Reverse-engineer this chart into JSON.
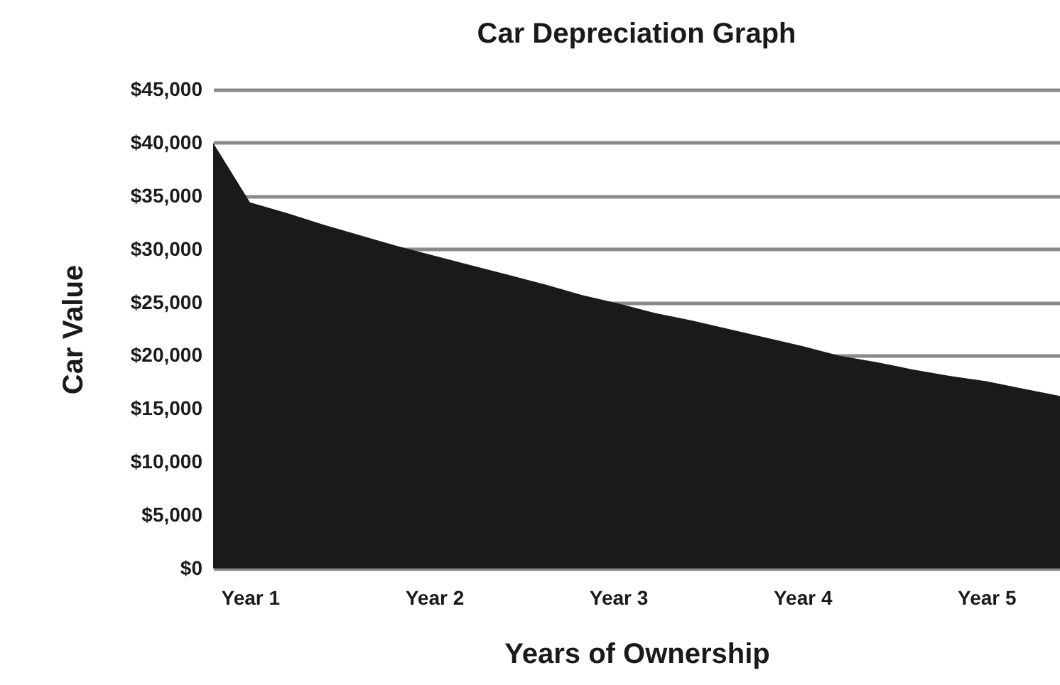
{
  "chart_data": {
    "type": "area",
    "title": "Car Depreciation Graph",
    "xlabel": "Years of Ownership",
    "ylabel": "Car Value",
    "categories": [
      null,
      "Year 1",
      null,
      null,
      null,
      null,
      "Year 2",
      null,
      null,
      null,
      null,
      "Year 3",
      null,
      null,
      null,
      null,
      "Year 4",
      null,
      null,
      null,
      null,
      "Year 5",
      null,
      null
    ],
    "series": [
      {
        "color": "#1a1a1a",
        "values": [
          40000,
          34400,
          33400,
          32300,
          31300,
          30300,
          29400,
          28500,
          27600,
          26700,
          25700,
          24900,
          24000,
          23300,
          22500,
          21700,
          20900,
          20000,
          19400,
          18700,
          18100,
          17600,
          16900,
          16200
        ]
      }
    ],
    "ylim": [
      0,
      45000
    ],
    "yticks": [
      {
        "value": 0,
        "label": "$0"
      },
      {
        "value": 5000,
        "label": "$5,000"
      },
      {
        "value": 10000,
        "label": "$10,000"
      },
      {
        "value": 15000,
        "label": "$15,000"
      },
      {
        "value": 20000,
        "label": "$20,000"
      },
      {
        "value": 25000,
        "label": "$25,000"
      },
      {
        "value": 30000,
        "label": "$30,000"
      },
      {
        "value": 35000,
        "label": "$35,000"
      },
      {
        "value": 40000,
        "label": "$40,000"
      },
      {
        "value": 45000,
        "label": "$45,000"
      }
    ],
    "grid": "y"
  }
}
